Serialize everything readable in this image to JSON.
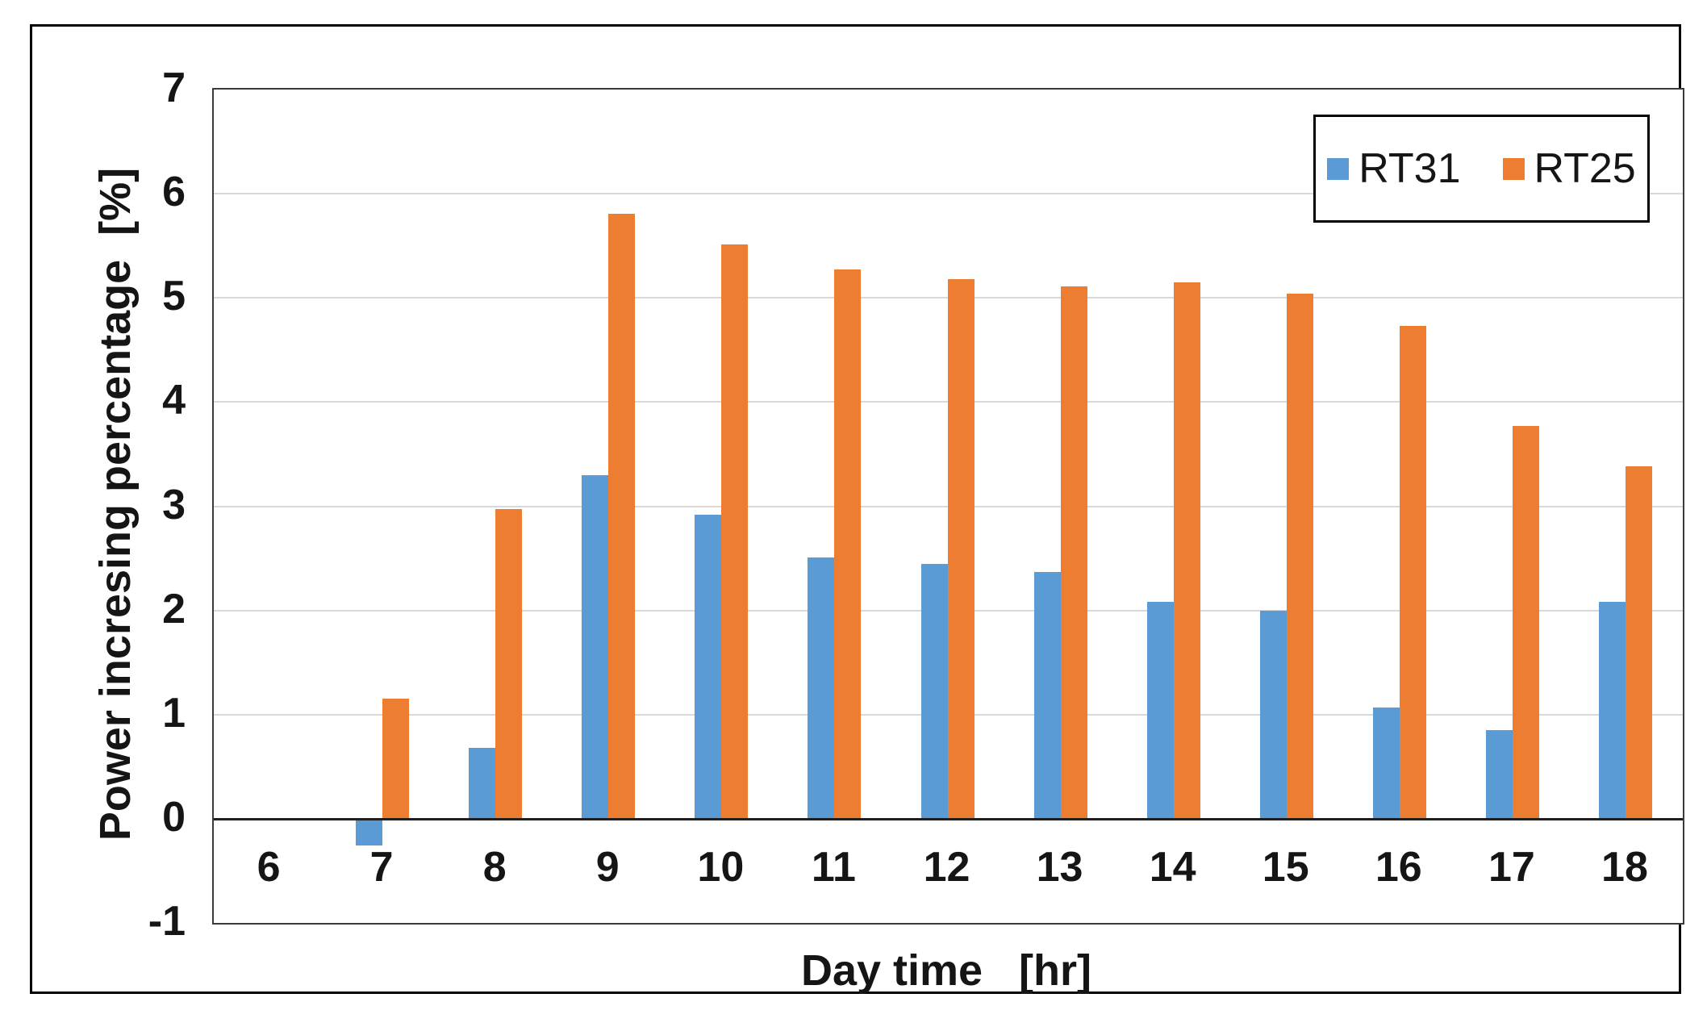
{
  "chart_data": {
    "type": "bar",
    "title": "",
    "xlabel": "Day time   [hr]",
    "ylabel": "Power incresing percentage  [%]",
    "categories": [
      "6",
      "7",
      "8",
      "9",
      "10",
      "11",
      "12",
      "13",
      "14",
      "15",
      "16",
      "17",
      "18"
    ],
    "series": [
      {
        "name": "RT31",
        "color": "#5B9BD5",
        "values": [
          0,
          -0.26,
          0.68,
          3.3,
          2.92,
          2.51,
          2.45,
          2.37,
          2.08,
          2.0,
          1.07,
          0.85,
          2.08
        ]
      },
      {
        "name": "RT25",
        "color": "#ED7D31",
        "values": [
          0,
          1.15,
          2.97,
          5.81,
          5.51,
          5.27,
          5.18,
          5.11,
          5.15,
          5.04,
          4.73,
          3.77,
          3.38
        ]
      }
    ],
    "ylim": [
      -1,
      7
    ],
    "y_ticks": [
      7,
      6,
      5,
      4,
      3,
      2,
      1,
      0,
      -1
    ],
    "grid": true,
    "legend_position": "top-right",
    "colors": {
      "gridline": "#d9d9d9",
      "axis_line": "#1f1f1f",
      "text": "#151515"
    }
  }
}
